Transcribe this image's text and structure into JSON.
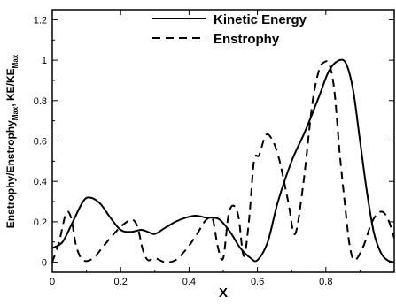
{
  "chart_data": {
    "type": "line",
    "title": "",
    "xlabel": "X",
    "ylabel": {
      "parts": [
        "Enstrophy/Enstrophy",
        "Max",
        ", KE/KE",
        "Max"
      ]
    },
    "xlim": [
      0,
      1
    ],
    "ylim": [
      -0.05,
      1.25
    ],
    "xticks": [
      "0",
      "0.2",
      "0.4",
      "0.6",
      "0.8"
    ],
    "xtick_values": [
      0,
      0.2,
      0.4,
      0.6,
      0.8
    ],
    "yticks": [
      "0",
      "0.2",
      "0.4",
      "0.6",
      "0.8",
      "1",
      "1.2"
    ],
    "ytick_values": [
      0,
      0.2,
      0.4,
      0.6,
      0.8,
      1.0,
      1.2
    ],
    "grid": false,
    "legend_position": "top-right",
    "series": [
      {
        "name": "Kinetic Energy",
        "style": "solid",
        "color": "#000000",
        "x": [
          0,
          0.03,
          0.06,
          0.09,
          0.11,
          0.14,
          0.17,
          0.2,
          0.23,
          0.26,
          0.28,
          0.3,
          0.33,
          0.36,
          0.39,
          0.42,
          0.45,
          0.47,
          0.49,
          0.52,
          0.55,
          0.58,
          0.6,
          0.63,
          0.66,
          0.7,
          0.74,
          0.78,
          0.81,
          0.84,
          0.86,
          0.88,
          0.9,
          0.92,
          0.94,
          0.96,
          0.98,
          1.0
        ],
        "y": [
          0.07,
          0.1,
          0.2,
          0.3,
          0.32,
          0.29,
          0.22,
          0.16,
          0.15,
          0.16,
          0.15,
          0.14,
          0.17,
          0.2,
          0.22,
          0.23,
          0.22,
          0.22,
          0.21,
          0.15,
          0.07,
          0.02,
          0.01,
          0.1,
          0.3,
          0.5,
          0.65,
          0.82,
          0.95,
          1.0,
          0.98,
          0.85,
          0.6,
          0.35,
          0.15,
          0.05,
          0.01,
          0.0
        ]
      },
      {
        "name": "Enstrophy",
        "style": "dashed",
        "color": "#000000",
        "x": [
          0,
          0.02,
          0.04,
          0.055,
          0.07,
          0.09,
          0.12,
          0.15,
          0.18,
          0.21,
          0.235,
          0.25,
          0.265,
          0.28,
          0.3,
          0.33,
          0.36,
          0.39,
          0.42,
          0.445,
          0.46,
          0.47,
          0.485,
          0.5,
          0.515,
          0.53,
          0.545,
          0.56,
          0.575,
          0.59,
          0.605,
          0.625,
          0.645,
          0.665,
          0.69,
          0.71,
          0.735,
          0.76,
          0.78,
          0.795,
          0.81,
          0.825,
          0.84,
          0.855,
          0.87,
          0.885,
          0.91,
          0.935,
          0.96,
          0.98,
          1.0
        ],
        "y": [
          0.0,
          0.1,
          0.24,
          0.22,
          0.08,
          0.01,
          0.02,
          0.08,
          0.14,
          0.19,
          0.21,
          0.17,
          0.06,
          0.01,
          0.02,
          0.0,
          0.01,
          0.06,
          0.13,
          0.2,
          0.22,
          0.21,
          0.07,
          0.02,
          0.23,
          0.28,
          0.22,
          0.03,
          0.2,
          0.5,
          0.53,
          0.63,
          0.6,
          0.5,
          0.3,
          0.14,
          0.4,
          0.78,
          0.95,
          0.99,
          0.98,
          0.85,
          0.55,
          0.3,
          0.08,
          0.01,
          0.08,
          0.2,
          0.25,
          0.22,
          0.12
        ]
      }
    ]
  }
}
